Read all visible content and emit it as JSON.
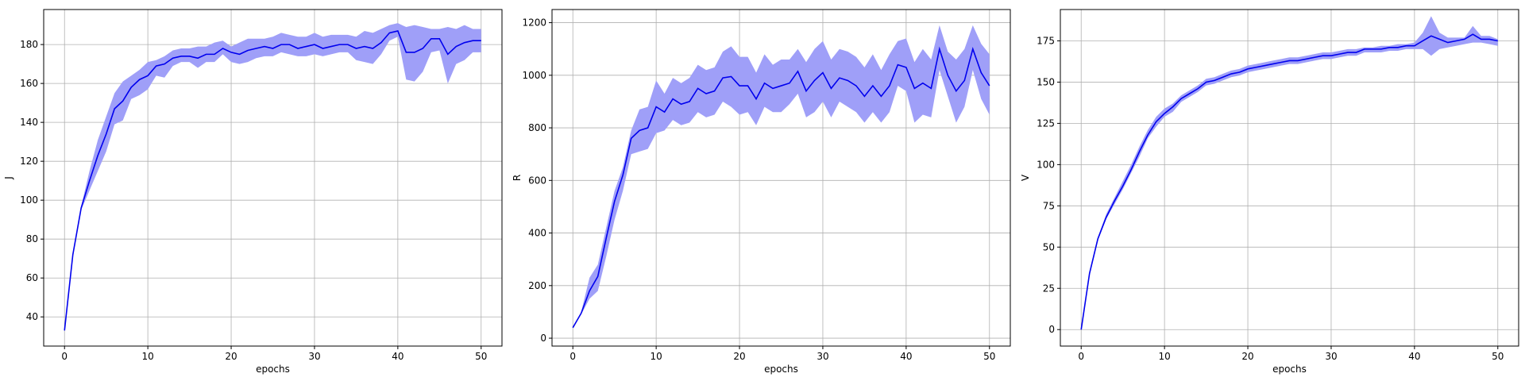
{
  "colors": {
    "line": "#0000ee",
    "band": "#9f9ff8",
    "grid": "#b0b0b0",
    "axis": "#000000"
  },
  "chart_data": [
    {
      "type": "line",
      "title": "",
      "xlabel": "epochs",
      "ylabel": "J",
      "xlim": [
        -2.5,
        52.5
      ],
      "ylim": [
        25,
        198
      ],
      "xticks": [
        0,
        10,
        20,
        30,
        40,
        50
      ],
      "yticks": [
        40,
        60,
        80,
        100,
        120,
        140,
        160,
        180
      ],
      "grid": true,
      "x": [
        0,
        1,
        2,
        3,
        4,
        5,
        6,
        7,
        8,
        9,
        10,
        11,
        12,
        13,
        14,
        15,
        16,
        17,
        18,
        19,
        20,
        21,
        22,
        23,
        24,
        25,
        26,
        27,
        28,
        29,
        30,
        31,
        32,
        33,
        34,
        35,
        36,
        37,
        38,
        39,
        40,
        41,
        42,
        43,
        44,
        45,
        46,
        47,
        48,
        49,
        50
      ],
      "series": [
        {
          "mean": [
            33,
            72,
            96,
            110,
            123,
            134,
            147,
            151,
            158,
            162,
            164,
            169,
            170,
            173,
            174,
            174,
            173,
            175,
            175,
            178,
            176,
            175,
            177,
            178,
            179,
            178,
            180,
            180,
            178,
            179,
            180,
            178,
            179,
            180,
            180,
            178,
            179,
            178,
            181,
            186,
            187,
            176,
            176,
            178,
            183,
            183,
            175,
            179,
            181,
            182,
            182
          ],
          "upper": [
            33,
            73,
            97,
            115,
            131,
            143,
            155,
            161,
            164,
            167,
            171,
            172,
            174,
            177,
            178,
            178,
            179,
            179,
            181,
            182,
            179,
            181,
            183,
            183,
            183,
            184,
            186,
            185,
            184,
            184,
            186,
            184,
            185,
            185,
            185,
            184,
            187,
            186,
            188,
            190,
            191,
            189,
            190,
            189,
            188,
            188,
            189,
            188,
            190,
            188,
            188
          ],
          "lower": [
            33,
            71,
            95,
            105,
            115,
            125,
            139,
            141,
            152,
            154,
            157,
            164,
            163,
            169,
            171,
            171,
            168,
            171,
            171,
            175,
            171,
            170,
            171,
            173,
            174,
            174,
            176,
            175,
            174,
            174,
            175,
            174,
            175,
            176,
            176,
            172,
            171,
            170,
            175,
            182,
            184,
            162,
            161,
            166,
            176,
            177,
            160,
            170,
            172,
            176,
            176
          ]
        }
      ]
    },
    {
      "type": "line",
      "title": "",
      "xlabel": "epochs",
      "ylabel": "R",
      "xlim": [
        -2.5,
        52.5
      ],
      "ylim": [
        -30,
        1250
      ],
      "xticks": [
        0,
        10,
        20,
        30,
        40,
        50
      ],
      "yticks": [
        0,
        200,
        400,
        600,
        800,
        1000,
        1200
      ],
      "grid": true,
      "x": [
        0,
        1,
        2,
        3,
        4,
        5,
        6,
        7,
        8,
        9,
        10,
        11,
        12,
        13,
        14,
        15,
        16,
        17,
        18,
        19,
        20,
        21,
        22,
        23,
        24,
        25,
        26,
        27,
        28,
        29,
        30,
        31,
        32,
        33,
        34,
        35,
        36,
        37,
        38,
        39,
        40,
        41,
        42,
        43,
        44,
        45,
        46,
        47,
        48,
        49,
        50
      ],
      "series": [
        {
          "mean": [
            40,
            95,
            180,
            235,
            380,
            520,
            620,
            760,
            790,
            800,
            880,
            860,
            910,
            890,
            900,
            950,
            930,
            940,
            990,
            995,
            960,
            960,
            910,
            970,
            950,
            960,
            970,
            1015,
            940,
            980,
            1010,
            950,
            990,
            980,
            960,
            920,
            960,
            920,
            960,
            1040,
            1030,
            950,
            970,
            950,
            1100,
            1000,
            940,
            980,
            1100,
            1010,
            960
          ],
          "upper": [
            40,
            100,
            230,
            280,
            420,
            560,
            650,
            790,
            870,
            880,
            980,
            930,
            990,
            970,
            990,
            1040,
            1020,
            1030,
            1090,
            1110,
            1070,
            1070,
            1010,
            1080,
            1040,
            1060,
            1060,
            1100,
            1050,
            1100,
            1130,
            1060,
            1100,
            1090,
            1070,
            1030,
            1080,
            1020,
            1080,
            1130,
            1140,
            1050,
            1100,
            1060,
            1190,
            1090,
            1060,
            1100,
            1190,
            1120,
            1080
          ],
          "lower": [
            40,
            90,
            150,
            180,
            310,
            450,
            560,
            700,
            710,
            720,
            780,
            790,
            830,
            810,
            820,
            860,
            840,
            850,
            900,
            880,
            850,
            860,
            810,
            880,
            860,
            860,
            890,
            930,
            840,
            860,
            900,
            840,
            900,
            880,
            860,
            820,
            860,
            820,
            860,
            960,
            940,
            820,
            850,
            840,
            1020,
            920,
            820,
            880,
            1020,
            910,
            850
          ]
        }
      ]
    },
    {
      "type": "line",
      "title": "",
      "xlabel": "epochs",
      "ylabel": "V",
      "xlim": [
        -2.5,
        52.5
      ],
      "ylim": [
        -10,
        194
      ],
      "xticks": [
        0,
        10,
        20,
        30,
        40,
        50
      ],
      "yticks": [
        0,
        25,
        50,
        75,
        100,
        125,
        150,
        175
      ],
      "grid": true,
      "x": [
        0,
        1,
        2,
        3,
        4,
        5,
        6,
        7,
        8,
        9,
        10,
        11,
        12,
        13,
        14,
        15,
        16,
        17,
        18,
        19,
        20,
        21,
        22,
        23,
        24,
        25,
        26,
        27,
        28,
        29,
        30,
        31,
        32,
        33,
        34,
        35,
        36,
        37,
        38,
        39,
        40,
        41,
        42,
        43,
        44,
        45,
        46,
        47,
        48,
        49,
        50
      ],
      "series": [
        {
          "mean": [
            0,
            34,
            55,
            68,
            78,
            87,
            97,
            108,
            118,
            126,
            131,
            135,
            140,
            143,
            146,
            150,
            151,
            153,
            155,
            156,
            158,
            159,
            160,
            161,
            162,
            163,
            163,
            164,
            165,
            166,
            166,
            167,
            168,
            168,
            170,
            170,
            170,
            171,
            171,
            172,
            172,
            175,
            178,
            176,
            174,
            175,
            176,
            179,
            176,
            176,
            175
          ],
          "upper": [
            0,
            35,
            56,
            70,
            80,
            90,
            100,
            111,
            121,
            129,
            134,
            137,
            142,
            145,
            148,
            152,
            153,
            155,
            157,
            158,
            160,
            161,
            162,
            163,
            164,
            165,
            165,
            166,
            167,
            168,
            168,
            169,
            170,
            170,
            171,
            171,
            172,
            172,
            173,
            173,
            174,
            180,
            190,
            180,
            177,
            177,
            177,
            184,
            178,
            178,
            176
          ],
          "lower": [
            0,
            33,
            54,
            67,
            76,
            85,
            95,
            105,
            116,
            123,
            129,
            132,
            138,
            141,
            144,
            148,
            149,
            151,
            153,
            154,
            156,
            157,
            158,
            159,
            160,
            161,
            161,
            162,
            163,
            164,
            164,
            165,
            166,
            166,
            168,
            168,
            168,
            169,
            169,
            170,
            170,
            170,
            166,
            170,
            171,
            172,
            173,
            174,
            174,
            173,
            172
          ]
        }
      ]
    }
  ]
}
